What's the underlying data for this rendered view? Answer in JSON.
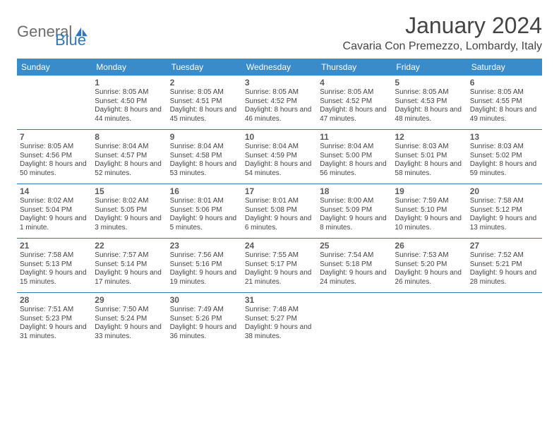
{
  "logo": {
    "part1": "General",
    "part2": "Blue"
  },
  "title": "January 2024",
  "location": "Cavaria Con Premezzo, Lombardy, Italy",
  "colors": {
    "header_bg": "#3a8bc9",
    "header_text": "#ffffff",
    "border": "#2e77b8",
    "text": "#444444",
    "logo_gray": "#6d6d6d",
    "logo_blue": "#2e77b8",
    "background": "#ffffff"
  },
  "day_names": [
    "Sunday",
    "Monday",
    "Tuesday",
    "Wednesday",
    "Thursday",
    "Friday",
    "Saturday"
  ],
  "weeks": [
    [
      null,
      {
        "n": "1",
        "sr": "8:05 AM",
        "ss": "4:50 PM",
        "dl": "8 hours and 44 minutes."
      },
      {
        "n": "2",
        "sr": "8:05 AM",
        "ss": "4:51 PM",
        "dl": "8 hours and 45 minutes."
      },
      {
        "n": "3",
        "sr": "8:05 AM",
        "ss": "4:52 PM",
        "dl": "8 hours and 46 minutes."
      },
      {
        "n": "4",
        "sr": "8:05 AM",
        "ss": "4:52 PM",
        "dl": "8 hours and 47 minutes."
      },
      {
        "n": "5",
        "sr": "8:05 AM",
        "ss": "4:53 PM",
        "dl": "8 hours and 48 minutes."
      },
      {
        "n": "6",
        "sr": "8:05 AM",
        "ss": "4:55 PM",
        "dl": "8 hours and 49 minutes."
      }
    ],
    [
      {
        "n": "7",
        "sr": "8:05 AM",
        "ss": "4:56 PM",
        "dl": "8 hours and 50 minutes."
      },
      {
        "n": "8",
        "sr": "8:04 AM",
        "ss": "4:57 PM",
        "dl": "8 hours and 52 minutes."
      },
      {
        "n": "9",
        "sr": "8:04 AM",
        "ss": "4:58 PM",
        "dl": "8 hours and 53 minutes."
      },
      {
        "n": "10",
        "sr": "8:04 AM",
        "ss": "4:59 PM",
        "dl": "8 hours and 54 minutes."
      },
      {
        "n": "11",
        "sr": "8:04 AM",
        "ss": "5:00 PM",
        "dl": "8 hours and 56 minutes."
      },
      {
        "n": "12",
        "sr": "8:03 AM",
        "ss": "5:01 PM",
        "dl": "8 hours and 58 minutes."
      },
      {
        "n": "13",
        "sr": "8:03 AM",
        "ss": "5:02 PM",
        "dl": "8 hours and 59 minutes."
      }
    ],
    [
      {
        "n": "14",
        "sr": "8:02 AM",
        "ss": "5:04 PM",
        "dl": "9 hours and 1 minute."
      },
      {
        "n": "15",
        "sr": "8:02 AM",
        "ss": "5:05 PM",
        "dl": "9 hours and 3 minutes."
      },
      {
        "n": "16",
        "sr": "8:01 AM",
        "ss": "5:06 PM",
        "dl": "9 hours and 5 minutes."
      },
      {
        "n": "17",
        "sr": "8:01 AM",
        "ss": "5:08 PM",
        "dl": "9 hours and 6 minutes."
      },
      {
        "n": "18",
        "sr": "8:00 AM",
        "ss": "5:09 PM",
        "dl": "9 hours and 8 minutes."
      },
      {
        "n": "19",
        "sr": "7:59 AM",
        "ss": "5:10 PM",
        "dl": "9 hours and 10 minutes."
      },
      {
        "n": "20",
        "sr": "7:58 AM",
        "ss": "5:12 PM",
        "dl": "9 hours and 13 minutes."
      }
    ],
    [
      {
        "n": "21",
        "sr": "7:58 AM",
        "ss": "5:13 PM",
        "dl": "9 hours and 15 minutes."
      },
      {
        "n": "22",
        "sr": "7:57 AM",
        "ss": "5:14 PM",
        "dl": "9 hours and 17 minutes."
      },
      {
        "n": "23",
        "sr": "7:56 AM",
        "ss": "5:16 PM",
        "dl": "9 hours and 19 minutes."
      },
      {
        "n": "24",
        "sr": "7:55 AM",
        "ss": "5:17 PM",
        "dl": "9 hours and 21 minutes."
      },
      {
        "n": "25",
        "sr": "7:54 AM",
        "ss": "5:18 PM",
        "dl": "9 hours and 24 minutes."
      },
      {
        "n": "26",
        "sr": "7:53 AM",
        "ss": "5:20 PM",
        "dl": "9 hours and 26 minutes."
      },
      {
        "n": "27",
        "sr": "7:52 AM",
        "ss": "5:21 PM",
        "dl": "9 hours and 28 minutes."
      }
    ],
    [
      {
        "n": "28",
        "sr": "7:51 AM",
        "ss": "5:23 PM",
        "dl": "9 hours and 31 minutes."
      },
      {
        "n": "29",
        "sr": "7:50 AM",
        "ss": "5:24 PM",
        "dl": "9 hours and 33 minutes."
      },
      {
        "n": "30",
        "sr": "7:49 AM",
        "ss": "5:26 PM",
        "dl": "9 hours and 36 minutes."
      },
      {
        "n": "31",
        "sr": "7:48 AM",
        "ss": "5:27 PM",
        "dl": "9 hours and 38 minutes."
      },
      null,
      null,
      null
    ]
  ],
  "labels": {
    "sunrise": "Sunrise: ",
    "sunset": "Sunset: ",
    "daylight": "Daylight: "
  }
}
